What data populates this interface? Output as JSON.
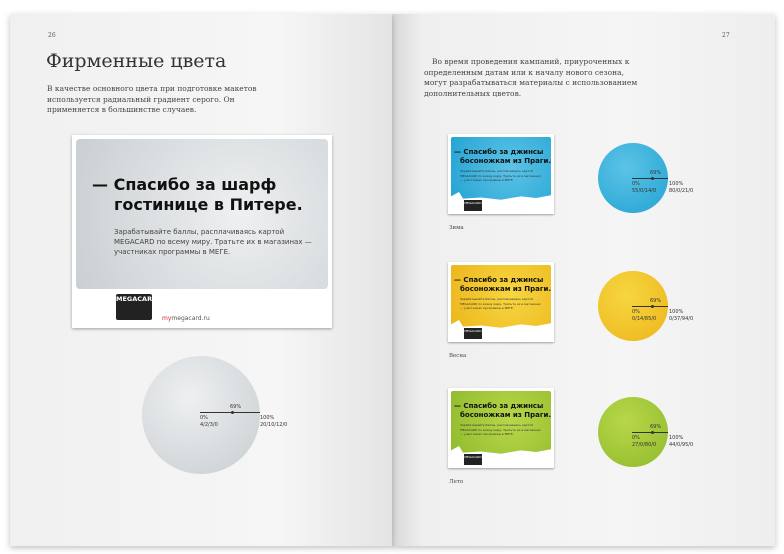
{
  "left_page": {
    "page_number": "26",
    "title": "Фирменные цвета",
    "paragraph": "В качестве основного цвета при подготовке макетов используется радиальный градиент серого. Он применяется в большинстве случаев.",
    "poster": {
      "headline_1": "— Спасибо за шарф",
      "headline_2": "гостинице в Питере.",
      "subtext": "Зарабатывайте баллы, расплачиваясь картой MEGACARD по всему миру. Тратьте их в магазинах — участниках программы в МЕГЕ.",
      "card_label": "MEGACARD",
      "url_accent": "my",
      "url_rest": "megacard.ru"
    },
    "gradient": {
      "mid": "69%",
      "start_label": "0%",
      "start_cmyk": "4/2/3/0",
      "end_label": "100%",
      "end_cmyk": "20/10/12/0",
      "color_from": "#eef0f1",
      "color_to": "#c7cdd0"
    }
  },
  "right_page": {
    "page_number": "27",
    "paragraph": "Во время проведения кампаний, приуроченных к определенным датам или к началу нового сезона, могут разрабатываться материалы с использованием дополнительных цветов.",
    "seasons": [
      {
        "name": "Зима",
        "headline_1": "— Спасибо за джинсы",
        "headline_2": "босоножкам из Праги.",
        "subtext": "Зарабатывайте баллы, расплачиваясь картой MEGACARD по всему миру. Тратьте их в магазинах — участниках программы в МЕГЕ.",
        "card_label": "MEGACARD",
        "mid": "69%",
        "start_label": "0%",
        "start_cmyk": "55/0/14/0",
        "end_label": "100%",
        "end_cmyk": "80/0/21/0",
        "color_from": "#5cc3e6",
        "color_to": "#23a3d3"
      },
      {
        "name": "Весна",
        "headline_1": "— Спасибо за джинсы",
        "headline_2": "босоножкам из Праги.",
        "subtext": "Зарабатывайте баллы, расплачиваясь картой MEGACARD по всему миру. Тратьте их в магазинах — участниках программы в МЕГЕ.",
        "card_label": "MEGACARD",
        "mid": "69%",
        "start_label": "0%",
        "start_cmyk": "0/14/85/0",
        "end_label": "100%",
        "end_cmyk": "0/37/94/0",
        "color_from": "#f7d640",
        "color_to": "#ecb51c"
      },
      {
        "name": "Лето",
        "headline_1": "— Спасибо за джинсы",
        "headline_2": "босоножкам из Праги.",
        "subtext": "Зарабатывайте баллы, расплачиваясь картой MEGACARD по всему миру. Тратьте их в магазинах — участниках программы в МЕГЕ.",
        "card_label": "MEGACARD",
        "mid": "69%",
        "start_label": "0%",
        "start_cmyk": "27/0/80/0",
        "end_label": "100%",
        "end_cmyk": "44/0/95/0",
        "color_from": "#b9d64a",
        "color_to": "#8fbb2c"
      }
    ]
  }
}
